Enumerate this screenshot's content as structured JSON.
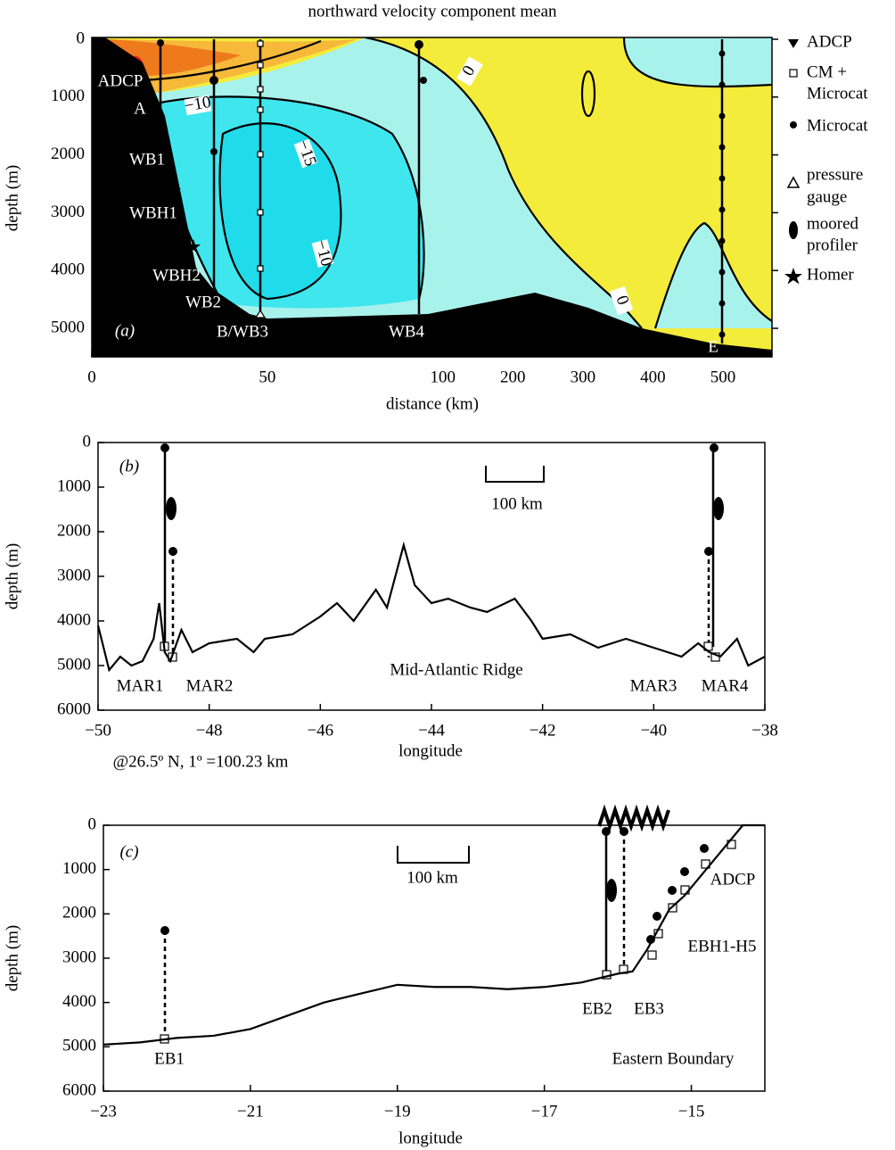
{
  "chart_data": [
    {
      "type": "contour",
      "title": "northward velocity component mean",
      "xlabel": "distance (km)",
      "ylabel": "depth (m)",
      "xlim": [
        0,
        570
      ],
      "ylim": [
        0,
        5500
      ],
      "y_inverted": true,
      "xticks": [
        0,
        50,
        100,
        200,
        300,
        400,
        500
      ],
      "yticks": [
        0,
        1000,
        2000,
        3000,
        4000,
        5000
      ],
      "panel_label": "(a)",
      "contour_labels": [
        {
          "value": 0,
          "label": "0"
        },
        {
          "value": -10,
          "label": "−10"
        },
        {
          "value": -15,
          "label": "−15"
        },
        {
          "value": -10,
          "label": "−10"
        },
        {
          "value": 0,
          "label": "0"
        }
      ],
      "moorings": [
        "ADCP",
        "A",
        "WB1",
        "WBH1",
        "WBH2",
        "WB2",
        "B/WB3",
        "WB4",
        "E"
      ],
      "legend": [
        {
          "label": [
            "ADCP"
          ]
        },
        {
          "label": [
            "CM +",
            "Microcat"
          ]
        },
        {
          "label": [
            "Microcat"
          ]
        },
        {
          "label": [
            "pressure",
            "gauge"
          ]
        },
        {
          "label": [
            "moored",
            "profiler"
          ]
        },
        {
          "label": [
            "Homer"
          ]
        }
      ]
    },
    {
      "type": "line",
      "xlabel": "longitude",
      "ylabel": "depth (m)",
      "xlim": [
        -50,
        -38
      ],
      "ylim": [
        0,
        6000
      ],
      "y_inverted": true,
      "xticks": [
        {
          "value": -50,
          "label": "−50"
        },
        {
          "value": -48,
          "label": "−48"
        },
        {
          "value": -46,
          "label": "−46"
        },
        {
          "value": -44,
          "label": "−44"
        },
        {
          "value": -42,
          "label": "−42"
        },
        {
          "value": -40,
          "label": "−40"
        },
        {
          "value": -38,
          "label": "−38"
        }
      ],
      "yticks": [
        0,
        1000,
        2000,
        3000,
        4000,
        5000,
        6000
      ],
      "x": [
        -50,
        -49.8,
        -49.6,
        -49.4,
        -49.2,
        -49,
        -48.9,
        -48.8,
        -48.7,
        -48.5,
        -48.3,
        -48,
        -47.5,
        -47.2,
        -47,
        -46.5,
        -46,
        -45.7,
        -45.4,
        -45,
        -44.8,
        -44.5,
        -44.3,
        -44,
        -43.7,
        -43.3,
        -43,
        -42.5,
        -42.2,
        -42,
        -41.5,
        -41,
        -40.5,
        -40,
        -39.5,
        -39.2,
        -39,
        -38.8,
        -38.5,
        -38.3,
        -38
      ],
      "series": [
        {
          "color": "#000000",
          "values": [
            4100,
            5100,
            4800,
            5000,
            4900,
            4400,
            3600,
            4700,
            4900,
            4200,
            4700,
            4500,
            4400,
            4700,
            4400,
            4300,
            3900,
            3600,
            4000,
            3300,
            3700,
            2300,
            3200,
            3600,
            3500,
            3700,
            3800,
            3500,
            4000,
            4400,
            4300,
            4600,
            4400,
            4600,
            4800,
            4500,
            4700,
            4800,
            4400,
            5000,
            4800
          ]
        }
      ],
      "panel_label": "(b)",
      "scale_bar": "100 km",
      "annotations": [
        "Mid-Atlantic Ridge",
        "MAR1",
        "MAR2",
        "MAR3",
        "MAR4"
      ],
      "note": "@26.5º N, 1º =100.23 km"
    },
    {
      "type": "line",
      "xlabel": "longitude",
      "ylabel": "depth (m)",
      "xlim": [
        -23,
        -14
      ],
      "ylim": [
        0,
        6000
      ],
      "y_inverted": true,
      "xticks": [
        {
          "value": -23,
          "label": "−23"
        },
        {
          "value": -21,
          "label": "−21"
        },
        {
          "value": -19,
          "label": "−19"
        },
        {
          "value": -17,
          "label": "−17"
        },
        {
          "value": -15,
          "label": "−15"
        }
      ],
      "yticks": [
        0,
        1000,
        2000,
        3000,
        4000,
        5000,
        6000
      ],
      "x": [
        -23,
        -22.5,
        -22,
        -21.5,
        -21,
        -20.5,
        -20,
        -19.5,
        -19,
        -18.5,
        -18,
        -17.5,
        -17,
        -16.5,
        -16,
        -15.8,
        -15.6,
        -15.5,
        -15.3,
        -15.1,
        -14.8,
        -14.5,
        -14.3,
        -14
      ],
      "series": [
        {
          "color": "#000000",
          "values": [
            4950,
            4900,
            4800,
            4750,
            4600,
            4300,
            4000,
            3800,
            3600,
            3650,
            3650,
            3700,
            3650,
            3550,
            3350,
            3300,
            2800,
            2500,
            1900,
            1600,
            1000,
            400,
            0,
            0
          ]
        }
      ],
      "panel_label": "(c)",
      "scale_bar": "100 km",
      "annotations": [
        "EB1",
        "EB2",
        "EB3",
        "EBH1-H5",
        "ADCP",
        "Eastern Boundary"
      ]
    }
  ]
}
